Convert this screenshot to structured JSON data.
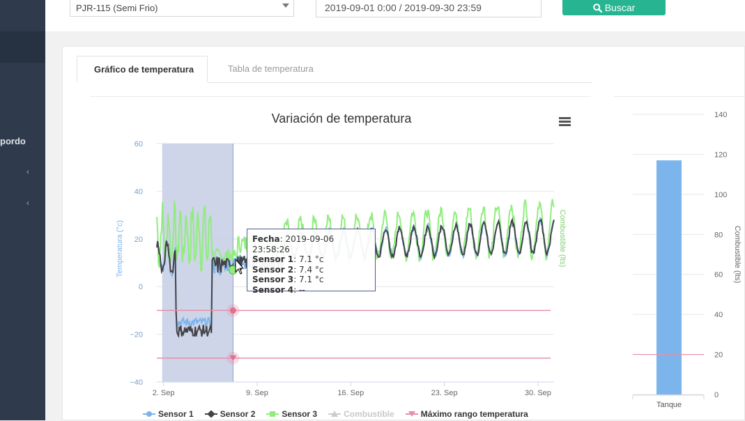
{
  "sidebar": {
    "item_label": "pordo",
    "chevron_1": "‹",
    "chevron_2": "‹"
  },
  "filters": {
    "vehicle_select": "PJR-115 (Semi Frio)",
    "date_range": "2019-09-01 0:00 / 2019-09-30 23:59",
    "search_button": "Buscar"
  },
  "tabs": [
    {
      "label": "Gráfico de temperatura",
      "active": true
    },
    {
      "label": "Tabla de temperatura",
      "active": false
    }
  ],
  "tooltip": {
    "fecha_label": "Fecha",
    "fecha_value": ": 2019-09-06 23:58:26",
    "s1_label": "Sensor 1",
    "s1_value": ": 7.1 °c",
    "s2_label": "Sensor 2",
    "s2_value": ": 7.4 °c",
    "s3_label": "Sensor 3",
    "s3_value": ": 7.1 °c",
    "s4_label": "Sensor 4",
    "s4_value": ": --"
  },
  "chart_data": [
    {
      "type": "line",
      "title": "Variación de temperatura",
      "ylabel": "Temperatura (°c)",
      "ylabel_right": "Combustible (lts)",
      "ylim": [
        -40,
        60
      ],
      "y_ticks": [
        "60",
        "40",
        "20",
        "0",
        "−20",
        "−40"
      ],
      "x_ticks": [
        "2. Sep",
        "9. Sep",
        "16. Sep",
        "23. Sep",
        "30. Sep"
      ],
      "x_ticks_day": [
        2,
        9,
        16,
        23,
        30
      ],
      "xlim_day": [
        1.5,
        31.2
      ],
      "selection_day": [
        1.9,
        7.2
      ],
      "thresholds": [
        -10,
        -30
      ],
      "colors": {
        "sensor1": "#7cb5ec",
        "sensor2": "#434348",
        "sensor3": "#90ed7d",
        "threshold": "#e58fa8",
        "selection": "#c9d0e6"
      },
      "series": [
        {
          "name": "Sensor 1",
          "visible": true
        },
        {
          "name": "Sensor 2",
          "visible": true
        },
        {
          "name": "Sensor 3",
          "visible": true
        },
        {
          "name": "Combustible",
          "visible": false
        },
        {
          "name": "Máximo rango temperatura",
          "visible": true
        }
      ]
    },
    {
      "type": "bar",
      "categories": [
        "Tanque"
      ],
      "values": [
        117
      ],
      "ylabel": "Combustible (lts)",
      "ylim": [
        0,
        140
      ],
      "y_ticks": [
        "140",
        "120",
        "100",
        "80",
        "60",
        "40",
        "20",
        "0"
      ],
      "reference_line": 20,
      "color": "#7cb5ec"
    }
  ]
}
